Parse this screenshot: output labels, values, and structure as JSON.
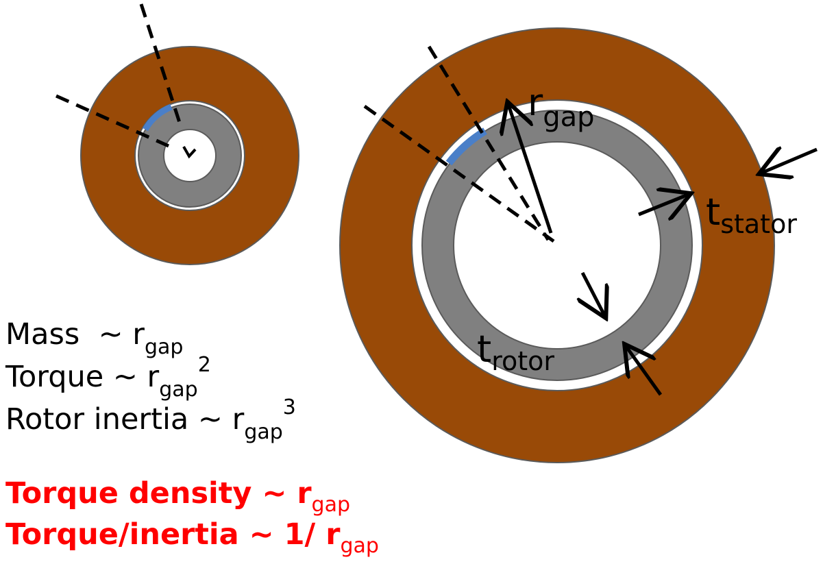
{
  "colors": {
    "stator": "#994a07",
    "rotor": "#808080",
    "magnet": "#4a7fc8",
    "outline": "#5a5a5a",
    "highlight": "#ff0000"
  },
  "labels": {
    "r_main": "r",
    "r_sub": "gap",
    "t_stator_main": "t",
    "t_stator_sub": "stator",
    "t_rotor_main": "t",
    "t_rotor_sub": "rotor"
  },
  "relations": [
    {
      "lhs": "Mass  ~ r",
      "sub": "gap",
      "sup": ""
    },
    {
      "lhs": "Torque ~ r",
      "sub": "gap",
      "sup": "2"
    },
    {
      "lhs": "Rotor inertia ~ r",
      "sub": "gap",
      "sup": "3"
    }
  ],
  "conclusions": [
    {
      "lhs": "Torque density ~ r",
      "sub": "gap"
    },
    {
      "lhs": "Torque/inertia ~ 1/ r",
      "sub": "gap"
    }
  ]
}
